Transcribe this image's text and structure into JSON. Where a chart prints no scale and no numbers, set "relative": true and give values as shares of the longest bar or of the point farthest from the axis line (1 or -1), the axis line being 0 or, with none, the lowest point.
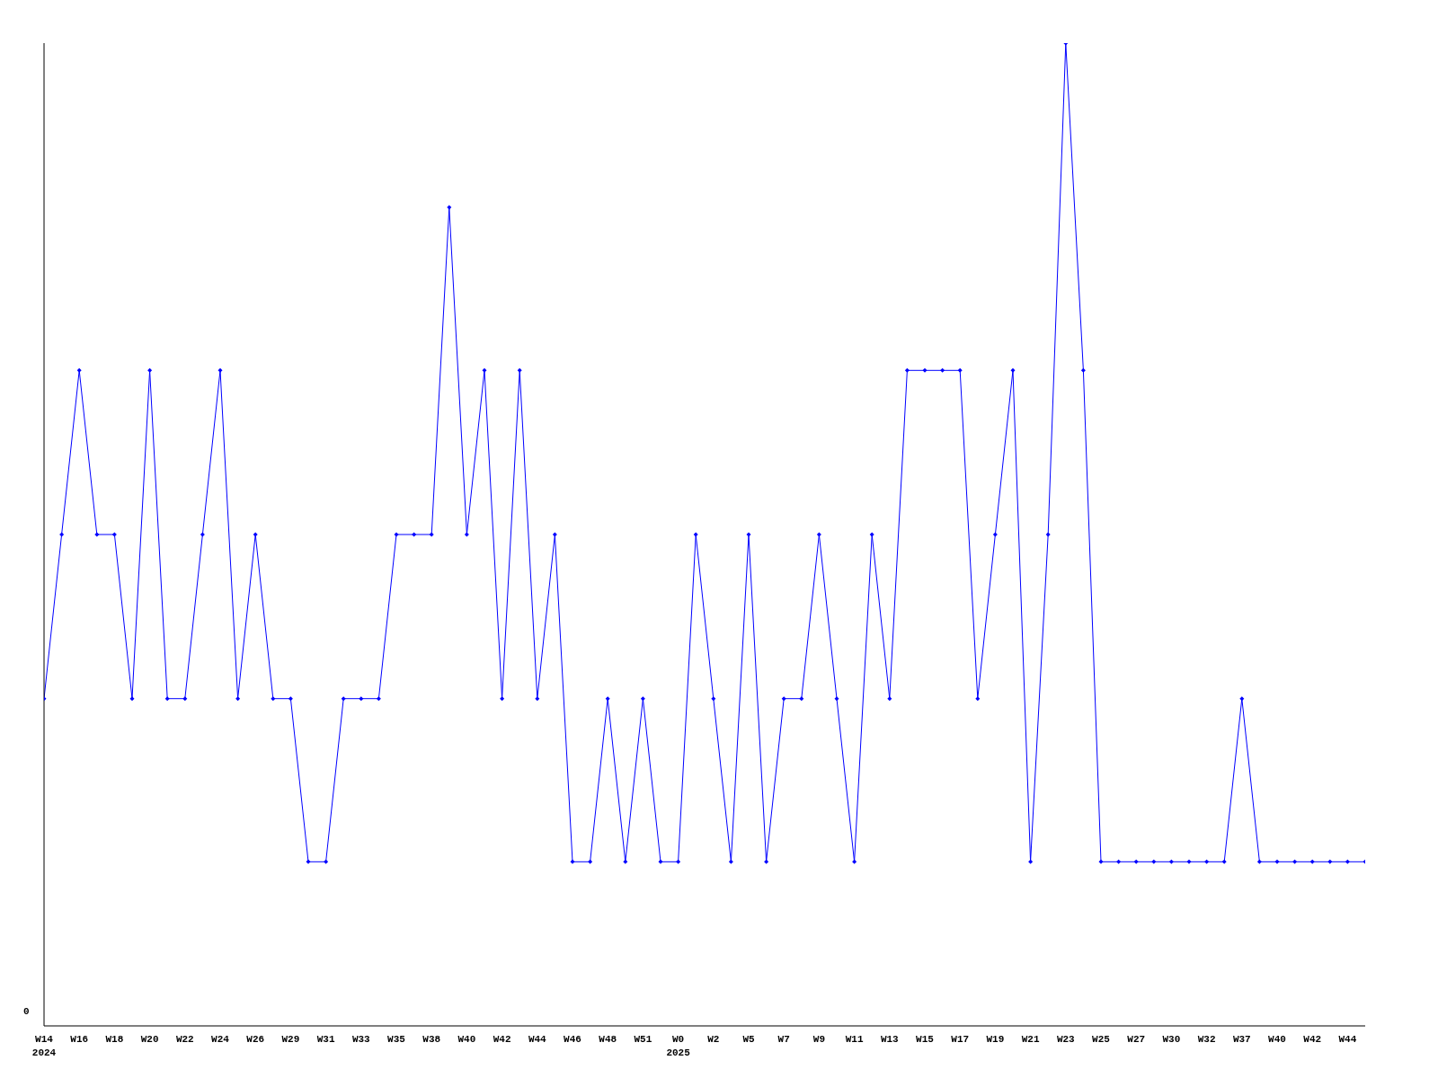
{
  "chart_data": {
    "type": "line",
    "relative": true,
    "marker": "diamond",
    "categories": [
      "W14\n2024",
      null,
      "W16",
      null,
      "W18",
      null,
      "W20",
      null,
      "W22",
      null,
      "W24",
      null,
      "W26",
      null,
      "W29",
      null,
      "W31",
      null,
      "W33",
      null,
      "W35",
      null,
      "W38",
      null,
      "W40",
      null,
      "W42",
      null,
      "W44",
      null,
      "W46",
      null,
      "W48",
      null,
      "W51",
      null,
      "W0\n2025",
      null,
      "W2",
      null,
      "W5",
      null,
      "W7",
      null,
      "W9",
      null,
      "W11",
      null,
      "W13",
      null,
      "W15",
      null,
      "W17",
      null,
      "W19",
      null,
      "W21",
      null,
      "W23",
      null,
      "W25",
      null,
      "W27",
      null,
      "W30",
      null,
      "W32",
      null,
      "W37",
      null,
      "W40",
      null,
      "W42",
      null,
      "W44",
      null
    ],
    "series": [
      {
        "color": "#0000ff",
        "values": [
          0.333,
          0.5,
          0.667,
          0.5,
          0.5,
          0.333,
          0.667,
          0.333,
          0.333,
          0.5,
          0.667,
          0.333,
          0.5,
          0.333,
          0.333,
          0.167,
          0.167,
          0.333,
          0.333,
          0.333,
          0.5,
          0.5,
          0.5,
          0.833,
          0.5,
          0.667,
          0.333,
          0.667,
          0.333,
          0.5,
          0.167,
          0.167,
          0.333,
          0.167,
          0.333,
          0.167,
          0.167,
          0.5,
          0.333,
          0.167,
          0.5,
          0.167,
          0.333,
          0.333,
          0.5,
          0.333,
          0.167,
          0.5,
          0.333,
          0.667,
          0.667,
          0.667,
          0.667,
          0.333,
          0.5,
          0.667,
          0.167,
          0.5,
          1,
          0.667,
          0.167,
          0.167,
          0.167,
          0.167,
          0.167,
          0.167,
          0.167,
          0.167,
          0.333,
          0.167,
          0.167,
          0.167,
          0.167,
          0.167,
          0.167,
          0.167
        ]
      }
    ],
    "annotations": [
      "0"
    ]
  }
}
